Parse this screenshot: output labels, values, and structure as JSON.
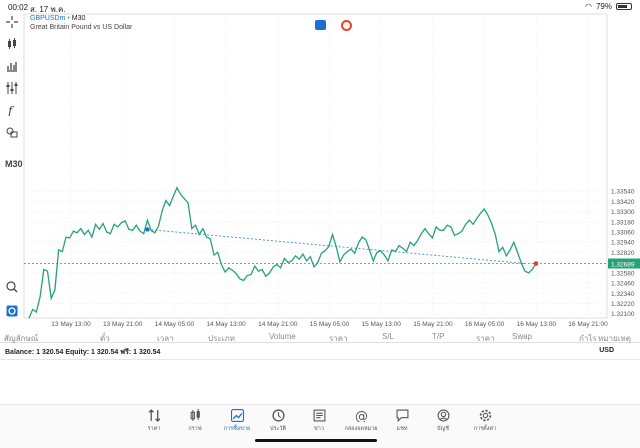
{
  "statusbar": {
    "time": "00:02",
    "date": "ส. 17 พ.ค.",
    "battery": "79%",
    "battery_level": 0.79
  },
  "toolbar": {
    "timeframe": "M30",
    "icons": [
      "crosshair-icon",
      "candles-icon",
      "bar-chart-icon",
      "indicators-icon",
      "function-icon",
      "objects-icon",
      "magnifier-icon",
      "app-logo-icon"
    ]
  },
  "chart": {
    "symbol": "GBPUSDm",
    "timeframe": "M30",
    "description": "Great Britain Pound vs US Dollar",
    "current_price": "1.32689",
    "colors": {
      "line": "#26a17b",
      "dashed": "#3a8fd8",
      "grid": "#eeeeee",
      "price_bg": "#26a17b"
    }
  },
  "chart_data": {
    "type": "line",
    "y_ticks": [
      "1.33540",
      "1.33420",
      "1.33300",
      "1.33180",
      "1.33060",
      "1.32940",
      "1.32820",
      "1.32580",
      "1.32460",
      "1.32340",
      "1.32220",
      "1.32100"
    ],
    "x_ticks": [
      "13 May 13:00",
      "13 May 21:00",
      "14 May 05:00",
      "14 May 13:00",
      "14 May 21:00",
      "15 May 05:00",
      "15 May 13:00",
      "15 May 21:00",
      "16 May 05:00",
      "16 May 13:00",
      "16 May 21:00"
    ],
    "ylim": [
      1.3205,
      1.3562
    ],
    "close": [
      1.3205,
      1.3215,
      1.3212,
      1.323,
      1.3262,
      1.326,
      1.3228,
      1.3238,
      1.3285,
      1.3283,
      1.33,
      1.3299,
      1.3307,
      1.3305,
      1.331,
      1.3303,
      1.3308,
      1.33,
      1.3315,
      1.3309,
      1.3316,
      1.3306,
      1.3304,
      1.3315,
      1.3312,
      1.3317,
      1.3319,
      1.3309,
      1.3308,
      1.3314,
      1.3307,
      1.3304,
      1.332,
      1.3308,
      1.3305,
      1.3313,
      1.3331,
      1.3343,
      1.3337,
      1.3348,
      1.3358,
      1.335,
      1.3345,
      1.334,
      1.331,
      1.3314,
      1.3303,
      1.331,
      1.33,
      1.3298,
      1.3279,
      1.3282,
      1.3268,
      1.3259,
      1.3264,
      1.3261,
      1.3257,
      1.3251,
      1.3249,
      1.3255,
      1.3256,
      1.3266,
      1.326,
      1.3262,
      1.3254,
      1.3258,
      1.3265,
      1.3268,
      1.3264,
      1.3275,
      1.327,
      1.3272,
      1.3278,
      1.3274,
      1.328,
      1.3272,
      1.3277,
      1.3265,
      1.327,
      1.3281,
      1.3284,
      1.3289,
      1.3303,
      1.3289,
      1.3271,
      1.3279,
      1.3283,
      1.3286,
      1.3281,
      1.3293,
      1.33,
      1.3297,
      1.3285,
      1.3272,
      1.3282,
      1.3284,
      1.3279,
      1.3272,
      1.3285,
      1.3283,
      1.329,
      1.3287,
      1.3283,
      1.3294,
      1.329,
      1.3296,
      1.3304,
      1.331,
      1.3304,
      1.3299,
      1.3312,
      1.3308,
      1.3308,
      1.3314,
      1.3312,
      1.3302,
      1.3304,
      1.3307,
      1.3315,
      1.332,
      1.3315,
      1.3322,
      1.3328,
      1.3333,
      1.3326,
      1.3316,
      1.3303,
      1.3283,
      1.3288,
      1.3278,
      1.3285,
      1.3294,
      1.3282,
      1.327,
      1.326,
      1.3258,
      1.3262,
      1.3269
    ],
    "trendline": [
      [
        32,
        1.3309
      ],
      [
        134,
        1.3269
      ]
    ]
  },
  "table": {
    "headers": [
      "สัญลักษณ์",
      "ตั๋ว",
      "เวลา",
      "ประเภท",
      "Volume",
      "ราคา",
      "S/L",
      "T/P",
      "ราคา",
      "Swap",
      "กำไร",
      "หมายเหตุ"
    ]
  },
  "account": {
    "balance_text": "Balance: 1 320.54  Equity: 1 320.54  ฟรี: 1 320.54",
    "currency": "USD"
  },
  "tabs": [
    {
      "label": "ราคา",
      "icon": "quotes-icon"
    },
    {
      "label": "กราฟ",
      "icon": "chart-icon"
    },
    {
      "label": "การซื้อขาย",
      "icon": "trade-icon",
      "active": true
    },
    {
      "label": "ประวัติ",
      "icon": "history-icon"
    },
    {
      "label": "ข่าว",
      "icon": "news-icon"
    },
    {
      "label": "กล่องจดหมาย",
      "icon": "mailbox-icon"
    },
    {
      "label": "แชท",
      "icon": "chat-icon"
    },
    {
      "label": "บัญชี",
      "icon": "account-icon"
    },
    {
      "label": "การตั้งค่า",
      "icon": "settings-icon"
    }
  ]
}
